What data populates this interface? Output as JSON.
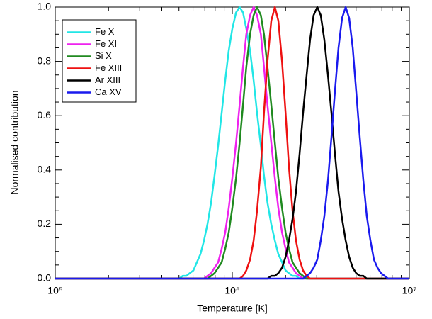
{
  "chart_data": {
    "type": "line",
    "xlabel": "Temperature [K]",
    "ylabel": "Normalised contribution",
    "xscale": "log",
    "legend": "upper left",
    "xlim": [
      100000,
      10000000
    ],
    "ylim": [
      0,
      1
    ],
    "xticks": [
      {
        "value": 100000,
        "label": "10⁵"
      },
      {
        "value": 1000000,
        "label": "10⁶"
      },
      {
        "value": 10000000,
        "label": "10⁷"
      }
    ],
    "yticks": [
      {
        "value": 0,
        "label": "0.0"
      },
      0.2,
      0.4,
      0.6,
      0.8,
      {
        "value": 1,
        "label": "1.0"
      }
    ],
    "x": [
      100000,
      316000,
      457000,
      479000,
      501000,
      525000,
      550000,
      575000,
      603000,
      631000,
      661000,
      692000,
      724000,
      759000,
      794000,
      832000,
      871000,
      912000,
      955000,
      1000000,
      1050000,
      1100000,
      1150000,
      1200000,
      1260000,
      1320000,
      1380000,
      1450000,
      1510000,
      1580000,
      1660000,
      1740000,
      1820000,
      1910000,
      2000000,
      2090000,
      2190000,
      2290000,
      2400000,
      2510000,
      2630000,
      2750000,
      2880000,
      3020000,
      3160000,
      3310000,
      3470000,
      3630000,
      3800000,
      3980000,
      4170000,
      4370000,
      4570000,
      4790000,
      5010000,
      5250000,
      5500000,
      5750000,
      6030000,
      6310000,
      6610000,
      6920000,
      7240000,
      7590000,
      7940000,
      10000000
    ],
    "series": [
      {
        "name": "Fe X",
        "color": "#22e6e6",
        "values": [
          0,
          0,
          0,
          0,
          0,
          0.01,
          0.01,
          0.02,
          0.03,
          0.06,
          0.09,
          0.14,
          0.2,
          0.28,
          0.38,
          0.49,
          0.61,
          0.73,
          0.84,
          0.92,
          0.98,
          1,
          0.98,
          0.92,
          0.84,
          0.73,
          0.61,
          0.49,
          0.38,
          0.28,
          0.2,
          0.14,
          0.09,
          0.06,
          0.03,
          0.02,
          0.01,
          0.01,
          0,
          0,
          0,
          0,
          0,
          0,
          0,
          0,
          0,
          0,
          0,
          0,
          0,
          0,
          0,
          0,
          0,
          0,
          0,
          0,
          0,
          0,
          0,
          0,
          0,
          0,
          0,
          0
        ]
      },
      {
        "name": "Fe XI",
        "color": "#ee22ee",
        "values": [
          0,
          0,
          0,
          0,
          0,
          0,
          0,
          0,
          0,
          0,
          0,
          0,
          0.01,
          0.02,
          0.04,
          0.06,
          0.11,
          0.17,
          0.26,
          0.37,
          0.5,
          0.64,
          0.78,
          0.9,
          0.97,
          1,
          0.97,
          0.9,
          0.78,
          0.64,
          0.5,
          0.37,
          0.26,
          0.17,
          0.11,
          0.06,
          0.04,
          0.02,
          0.01,
          0,
          0,
          0,
          0,
          0,
          0,
          0,
          0,
          0,
          0,
          0,
          0,
          0,
          0,
          0,
          0,
          0,
          0,
          0,
          0,
          0,
          0,
          0,
          0,
          0,
          0,
          0
        ]
      },
      {
        "name": "Si X",
        "color": "#208a20",
        "values": [
          0,
          0,
          0,
          0,
          0,
          0,
          0,
          0,
          0,
          0,
          0,
          0,
          0,
          0.01,
          0.02,
          0.04,
          0.06,
          0.11,
          0.17,
          0.26,
          0.37,
          0.5,
          0.64,
          0.78,
          0.9,
          0.97,
          1,
          0.97,
          0.9,
          0.78,
          0.64,
          0.5,
          0.37,
          0.26,
          0.17,
          0.11,
          0.06,
          0.04,
          0.02,
          0.01,
          0,
          0,
          0,
          0,
          0,
          0,
          0,
          0,
          0,
          0,
          0,
          0,
          0,
          0,
          0,
          0,
          0,
          0,
          0,
          0,
          0,
          0,
          0,
          0,
          0,
          0
        ]
      },
      {
        "name": "Fe XIII",
        "color": "#ee1111",
        "values": [
          0,
          0,
          0,
          0,
          0,
          0,
          0,
          0,
          0,
          0,
          0,
          0,
          0,
          0,
          0,
          0,
          0,
          0,
          0,
          0,
          0,
          0,
          0.01,
          0.03,
          0.07,
          0.14,
          0.25,
          0.41,
          0.61,
          0.8,
          0.95,
          1,
          0.95,
          0.8,
          0.61,
          0.41,
          0.25,
          0.14,
          0.07,
          0.03,
          0.01,
          0,
          0,
          0,
          0,
          0,
          0,
          0,
          0,
          0,
          0,
          0,
          0,
          0,
          0,
          0,
          0,
          0,
          0,
          0,
          0,
          0,
          0,
          0,
          0,
          0
        ]
      },
      {
        "name": "Ar XIII",
        "color": "#000000",
        "values": [
          0,
          0,
          0,
          0,
          0,
          0,
          0,
          0,
          0,
          0,
          0,
          0,
          0,
          0,
          0,
          0,
          0,
          0,
          0,
          0,
          0,
          0,
          0,
          0,
          0,
          0,
          0,
          0,
          0,
          0,
          0.01,
          0.01,
          0.02,
          0.04,
          0.08,
          0.14,
          0.22,
          0.32,
          0.46,
          0.61,
          0.75,
          0.88,
          0.97,
          1,
          0.97,
          0.88,
          0.75,
          0.61,
          0.46,
          0.32,
          0.22,
          0.14,
          0.08,
          0.04,
          0.02,
          0.01,
          0.01,
          0,
          0,
          0,
          0,
          0,
          0,
          0,
          0,
          0
        ]
      },
      {
        "name": "Ca XV",
        "color": "#1a1aee",
        "values": [
          0,
          0,
          0,
          0,
          0,
          0,
          0,
          0,
          0,
          0,
          0,
          0,
          0,
          0,
          0,
          0,
          0,
          0,
          0,
          0,
          0,
          0,
          0,
          0,
          0,
          0,
          0,
          0,
          0,
          0,
          0,
          0,
          0,
          0,
          0,
          0,
          0,
          0,
          0,
          0,
          0.01,
          0.02,
          0.04,
          0.07,
          0.14,
          0.23,
          0.36,
          0.52,
          0.69,
          0.85,
          0.96,
          1,
          0.96,
          0.85,
          0.69,
          0.52,
          0.36,
          0.23,
          0.14,
          0.07,
          0.04,
          0.02,
          0.01,
          0,
          0,
          0
        ]
      }
    ]
  }
}
